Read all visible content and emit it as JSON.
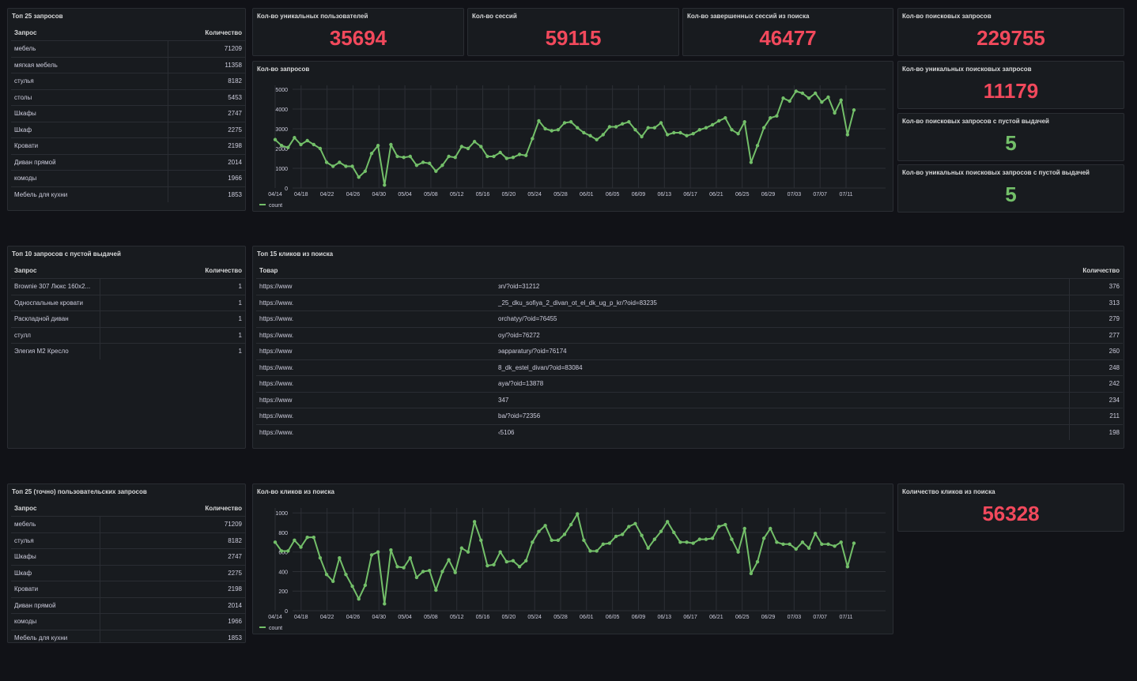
{
  "colors": {
    "bg": "#111217",
    "panel": "#181b1f",
    "red": "#f2495c",
    "green": "#73bf69",
    "grid": "#2c2f35"
  },
  "top25": {
    "title": "Топ 25 запросов",
    "col_query": "Запрос",
    "col_count": "Количество",
    "rows": [
      {
        "q": "мебель",
        "c": "71209"
      },
      {
        "q": "мягкая мебель",
        "c": "11358"
      },
      {
        "q": "стулья",
        "c": "8182"
      },
      {
        "q": "столы",
        "c": "5453"
      },
      {
        "q": "Шкафы",
        "c": "2747"
      },
      {
        "q": "Шкаф",
        "c": "2275"
      },
      {
        "q": "Кровати",
        "c": "2198"
      },
      {
        "q": "Диван прямой",
        "c": "2014"
      },
      {
        "q": "комоды",
        "c": "1966"
      },
      {
        "q": "Мебель для кухни",
        "c": "1853"
      }
    ]
  },
  "stats": {
    "unique_users": {
      "title": "Кол-во уникальных пользователей",
      "value": "35694"
    },
    "sessions": {
      "title": "Кол-во сессий",
      "value": "59115"
    },
    "search_sessions": {
      "title": "Кол-во завершенных сессий из поиска",
      "value": "46477"
    },
    "search_queries": {
      "title": "Кол-во поисковых запросов",
      "value": "229755"
    },
    "unique_search_queries": {
      "title": "Кол-во уникальных поисковых запросов",
      "value": "11179"
    },
    "empty_queries": {
      "title": "Кол-во поисковых запросов с пустой выдачей",
      "value": "5"
    },
    "unique_empty_queries": {
      "title": "Кол-во уникальных поисковых запросов с пустой выдачей",
      "value": "5"
    },
    "clicks": {
      "title": "Количество кликов из поиска",
      "value": "56328"
    }
  },
  "chart_queries": {
    "title": "Кол-во запросов",
    "legend": "count",
    "chart_data": {
      "type": "line",
      "x_ticks": [
        "04/14",
        "04/18",
        "04/22",
        "04/26",
        "04/30",
        "05/04",
        "05/08",
        "05/12",
        "05/16",
        "05/20",
        "05/24",
        "05/28",
        "06/01",
        "06/05",
        "06/09",
        "06/13",
        "06/17",
        "06/21",
        "06/25",
        "06/29",
        "07/03",
        "07/07",
        "07/11"
      ],
      "y_ticks": [
        "0",
        "1000",
        "2000",
        "3000",
        "4000",
        "5000"
      ],
      "ylim": [
        0,
        5200
      ],
      "series": [
        {
          "name": "count",
          "values": [
            2450,
            2150,
            2050,
            2550,
            2200,
            2400,
            2200,
            2000,
            1300,
            1100,
            1300,
            1100,
            1100,
            550,
            850,
            1750,
            2150,
            150,
            2200,
            1600,
            1550,
            1600,
            1150,
            1300,
            1250,
            850,
            1150,
            1600,
            1550,
            2100,
            2000,
            2350,
            2100,
            1600,
            1600,
            1800,
            1500,
            1550,
            1700,
            1650,
            2500,
            3400,
            3000,
            2900,
            2950,
            3300,
            3350,
            3050,
            2800,
            2650,
            2450,
            2700,
            3100,
            3100,
            3250,
            3350,
            2950,
            2600,
            3050,
            3050,
            3300,
            2700,
            2800,
            2800,
            2650,
            2750,
            2950,
            3050,
            3200,
            3400,
            3550,
            2950,
            2750,
            3350,
            1300,
            2150,
            3050,
            3550,
            3650,
            4550,
            4400,
            4900,
            4800,
            4550,
            4800,
            4350,
            4600,
            3800,
            4450,
            2700,
            3950
          ]
        }
      ]
    }
  },
  "empty10": {
    "title": "Топ 10 запросов с пустой выдачей",
    "col_query": "Запрос",
    "col_count": "Количество",
    "rows": [
      {
        "q": "Brownie 307 Люкс 160х2...",
        "c": "1"
      },
      {
        "q": "Односпальные кровати",
        "c": "1"
      },
      {
        "q": "Раскладной диван",
        "c": "1"
      },
      {
        "q": "стулл",
        "c": "1"
      },
      {
        "q": "Элегия М2 Кресло",
        "c": "1"
      }
    ]
  },
  "clicks15": {
    "title": "Топ 15 кликов из поиска",
    "col_product": "Товар",
    "col_count": "Количество",
    "rows": [
      {
        "a": "https://www",
        "b": "зn/?oid=31212",
        "c": "376"
      },
      {
        "a": "https://www.",
        "b": "_25_dku_sofiya_2_divan_ot_el_dk_ug_p_kr/?oid=83235",
        "c": "313"
      },
      {
        "a": "https://www.",
        "b": "orchatyy/?oid=76455",
        "c": "279"
      },
      {
        "a": "https://www.",
        "b": "oy/?oid=76272",
        "c": "277"
      },
      {
        "a": "https://www",
        "b": "эapparatury/?oid=76174",
        "c": "260"
      },
      {
        "a": "https://www.",
        "b": "8_dk_estel_divan/?oid=83084",
        "c": "248"
      },
      {
        "a": "https://www.",
        "b": "aya/?oid=13878",
        "c": "242"
      },
      {
        "a": "https://www",
        "b": "347",
        "c": "234"
      },
      {
        "a": "https://www.",
        "b": "ba/?oid=72356",
        "c": "211"
      },
      {
        "a": "https://www.",
        "b": "‹5106",
        "c": "198"
      }
    ]
  },
  "top25exact": {
    "title": "Топ 25 (точно) пользовательских запросов",
    "col_query": "Запрос",
    "col_count": "Количество",
    "rows": [
      {
        "q": "мебель",
        "c": "71209"
      },
      {
        "q": "стулья",
        "c": "8182"
      },
      {
        "q": "Шкафы",
        "c": "2747"
      },
      {
        "q": "Шкаф",
        "c": "2275"
      },
      {
        "q": "Кровати",
        "c": "2198"
      },
      {
        "q": "Диван прямой",
        "c": "2014"
      },
      {
        "q": "комоды",
        "c": "1966"
      },
      {
        "q": "Мебель для кухни",
        "c": "1853"
      }
    ]
  },
  "chart_clicks": {
    "title": "Кол-во кликов из поиска",
    "legend": "count",
    "chart_data": {
      "type": "line",
      "x_ticks": [
        "04/14",
        "04/18",
        "04/22",
        "04/26",
        "04/30",
        "05/04",
        "05/08",
        "05/12",
        "05/16",
        "05/20",
        "05/24",
        "05/28",
        "06/01",
        "06/05",
        "06/09",
        "06/13",
        "06/17",
        "06/21",
        "06/25",
        "06/29",
        "07/03",
        "07/07",
        "07/11"
      ],
      "y_ticks": [
        "0",
        "200",
        "400",
        "600",
        "800",
        "1000"
      ],
      "ylim": [
        0,
        1050
      ],
      "series": [
        {
          "name": "count",
          "values": [
            700,
            610,
            610,
            720,
            650,
            750,
            750,
            540,
            370,
            300,
            540,
            370,
            250,
            120,
            260,
            570,
            600,
            70,
            620,
            450,
            440,
            540,
            340,
            400,
            410,
            210,
            400,
            520,
            390,
            640,
            600,
            910,
            720,
            460,
            470,
            600,
            500,
            510,
            450,
            510,
            700,
            810,
            870,
            720,
            720,
            780,
            880,
            990,
            720,
            610,
            610,
            680,
            690,
            760,
            780,
            860,
            890,
            770,
            640,
            730,
            810,
            910,
            800,
            700,
            700,
            690,
            730,
            730,
            740,
            860,
            880,
            730,
            600,
            840,
            380,
            500,
            740,
            840,
            700,
            680,
            680,
            630,
            700,
            640,
            790,
            680,
            680,
            660,
            700,
            450,
            690
          ]
        }
      ]
    }
  }
}
